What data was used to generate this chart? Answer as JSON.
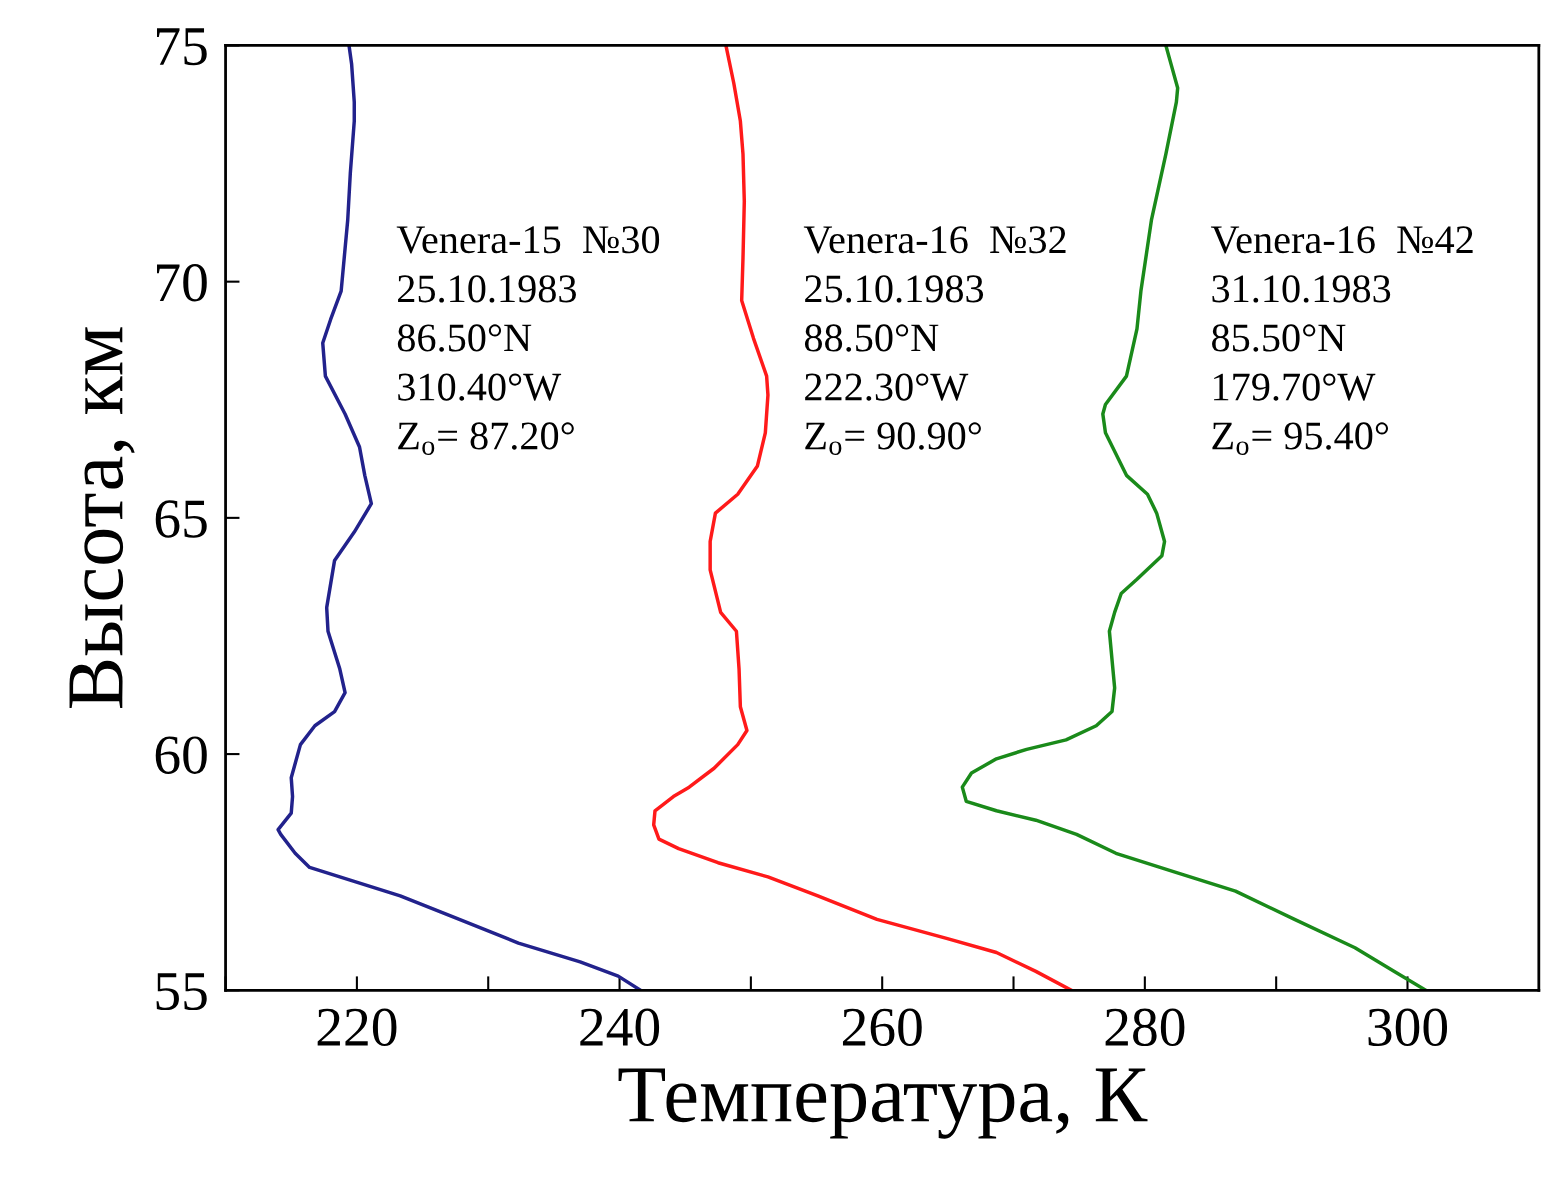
{
  "chart_data": {
    "type": "line",
    "xlabel": "Температура, К",
    "ylabel": "Высота, км",
    "xlim": [
      210,
      310
    ],
    "xticks": [
      {
        "value": 210,
        "label": null
      },
      220,
      {
        "value": 230,
        "label": null
      },
      240,
      {
        "value": 250,
        "label": null
      },
      260,
      {
        "value": 270,
        "label": null
      },
      280,
      {
        "value": 290,
        "label": null
      },
      300
    ],
    "ylim": [
      55,
      75
    ],
    "yticks": [
      55,
      60,
      65,
      70,
      75
    ],
    "grid": false,
    "marker": "none",
    "line_style": "solid",
    "annotations": [
      "Venera-15  №30\n25.10.1983\n86.50°N\n310.40°W\nZ$_{o}$= 87.20°",
      "Venera-16  №32\n25.10.1983\n88.50°N\n222.30°W\nZ$_{o}$= 90.90°",
      "Venera-16  №42\n31.10.1983\n85.50°N\n179.70°W\nZ$_{o}$= 95.40°"
    ],
    "series": [
      {
        "color": "#22228c",
        "x": [
          241.6,
          239.9,
          237.0,
          232.3,
          227.8,
          223.3,
          218.7,
          216.4,
          215.3,
          214.2,
          214.0,
          215.0,
          215.1,
          215.0,
          215.7,
          216.8,
          218.3,
          219.1,
          218.7,
          217.8,
          217.7,
          218.3,
          219.8,
          221.1,
          220.6,
          220.2,
          219.1,
          217.6,
          217.4,
          218.0,
          218.8,
          219.1,
          219.3,
          219.5,
          219.8,
          219.8,
          219.6,
          219.4
        ],
        "values": [
          55.0,
          55.3,
          55.6,
          56.0,
          56.5,
          57.0,
          57.4,
          57.6,
          57.9,
          58.3,
          58.4,
          58.75,
          59.1,
          59.5,
          60.2,
          60.6,
          60.9,
          61.3,
          61.8,
          62.6,
          63.1,
          64.1,
          64.7,
          65.3,
          65.9,
          66.5,
          67.2,
          68.0,
          68.7,
          69.2,
          69.8,
          70.7,
          71.3,
          72.3,
          73.4,
          73.8,
          74.6,
          75.0
        ]
      },
      {
        "color": "#ff1a1a",
        "x": [
          274.4,
          271.7,
          268.7,
          264.9,
          259.6,
          255.1,
          251.3,
          247.5,
          244.5,
          243.0,
          242.6,
          242.7,
          244.1,
          245.3,
          247.2,
          249.0,
          249.7,
          249.2,
          249.1,
          248.9,
          247.7,
          246.9,
          246.9,
          247.3,
          249.0,
          250.5,
          251.1,
          251.3,
          251.2,
          250.2,
          249.3,
          249.4,
          249.5,
          249.4,
          249.2,
          248.7,
          248.1
        ],
        "values": [
          55.0,
          55.4,
          55.8,
          56.1,
          56.5,
          57.0,
          57.4,
          57.7,
          58.0,
          58.2,
          58.5,
          58.8,
          59.1,
          59.3,
          59.7,
          60.2,
          60.5,
          61.0,
          61.8,
          62.6,
          63.0,
          63.9,
          64.5,
          65.1,
          65.5,
          66.1,
          66.8,
          67.6,
          68.0,
          68.8,
          69.6,
          70.5,
          71.7,
          72.7,
          73.4,
          74.2,
          75.0
        ]
      },
      {
        "color": "#1a8a1a",
        "x": [
          301.4,
          299.0,
          296.0,
          291.4,
          286.9,
          282.3,
          277.8,
          274.8,
          271.7,
          268.7,
          266.4,
          266.1,
          266.8,
          268.7,
          271.0,
          274.0,
          276.3,
          277.5,
          277.7,
          277.5,
          277.3,
          277.7,
          278.2,
          279.4,
          281.3,
          281.5,
          280.9,
          280.2,
          278.6,
          277.0,
          276.8,
          277.0,
          278.6,
          279.4,
          279.7,
          280.5,
          281.6,
          282.4,
          282.5,
          282.0,
          281.6
        ],
        "values": [
          55.0,
          55.4,
          55.9,
          56.5,
          57.1,
          57.5,
          57.9,
          58.3,
          58.6,
          58.8,
          59.0,
          59.3,
          59.6,
          59.9,
          60.1,
          60.3,
          60.6,
          60.9,
          61.4,
          62.0,
          62.6,
          63.0,
          63.4,
          63.7,
          64.2,
          64.5,
          65.1,
          65.5,
          65.9,
          66.8,
          67.2,
          67.4,
          68.0,
          69.0,
          69.8,
          71.3,
          72.7,
          73.8,
          74.1,
          74.6,
          75.0
        ]
      }
    ]
  }
}
